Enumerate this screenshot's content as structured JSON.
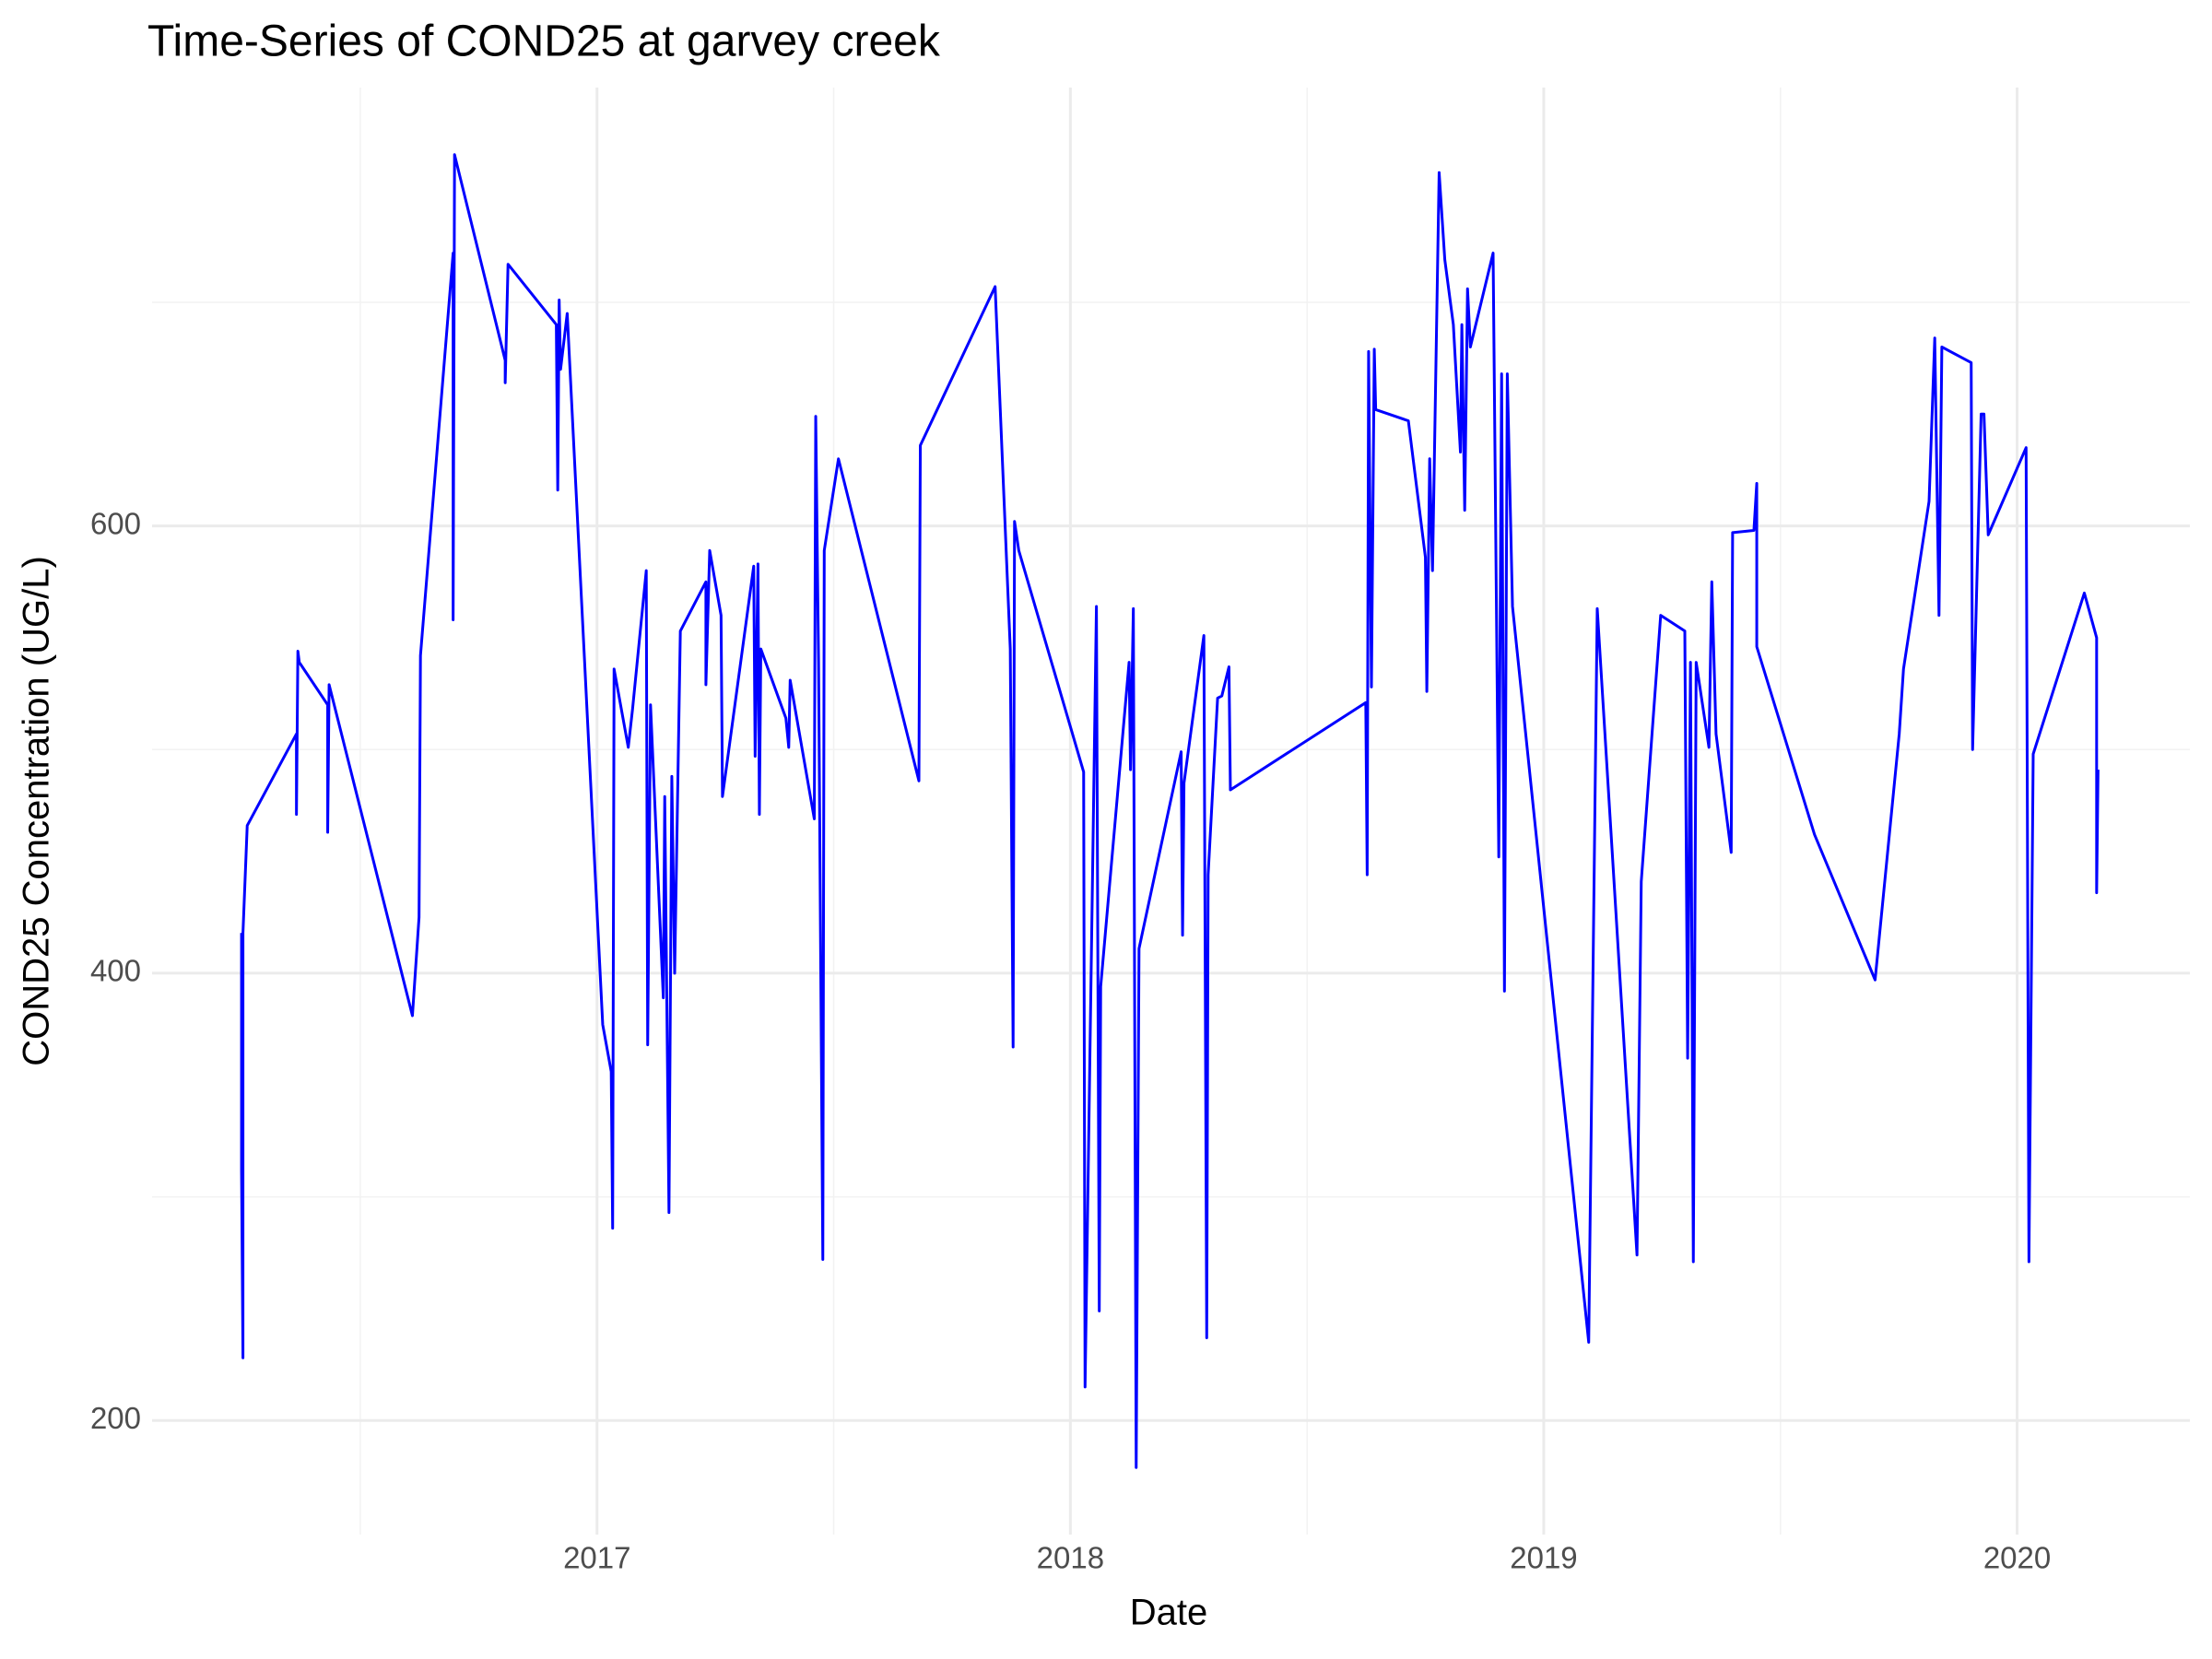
{
  "chart_data": {
    "type": "line",
    "title": "Time-Series of COND25 at garvey creek",
    "x_label": "Date",
    "y_label": "COND25 Concentration (UG/L)",
    "color": "#0000ff",
    "grid": true,
    "xlim": [
      2016.06,
      2020.365
    ],
    "xticks": [
      2017,
      2018,
      2019,
      2020
    ],
    "ylim": [
      149,
      796
    ],
    "yticks": [
      200,
      400,
      600
    ],
    "x": [
      2016.249,
      2016.249,
      2016.252,
      2016.252,
      2016.261,
      2016.365,
      2016.365,
      2016.368,
      2016.371,
      2016.431,
      2016.431,
      2016.434,
      2016.61,
      2016.624,
      2016.627,
      2016.696,
      2016.696,
      2016.699,
      2016.806,
      2016.806,
      2016.812,
      2016.914,
      2016.917,
      2016.92,
      2016.923,
      2016.937,
      2017.012,
      2017.03,
      2017.033,
      2017.036,
      2017.066,
      2017.075,
      2017.104,
      2017.107,
      2017.113,
      2017.14,
      2017.143,
      2017.152,
      2017.158,
      2017.164,
      2017.176,
      2017.23,
      2017.23,
      2017.238,
      2017.262,
      2017.265,
      2017.331,
      2017.334,
      2017.34,
      2017.343,
      2017.346,
      2017.399,
      2017.405,
      2017.408,
      2017.459,
      2017.462,
      2017.468,
      2017.477,
      2017.48,
      2017.51,
      2017.68,
      2017.683,
      2017.841,
      2017.873,
      2017.879,
      2017.882,
      2017.891,
      2018.028,
      2018.031,
      2018.046,
      2018.055,
      2018.061,
      2018.064,
      2018.124,
      2018.127,
      2018.133,
      2018.139,
      2018.145,
      2018.234,
      2018.237,
      2018.24,
      2018.282,
      2018.288,
      2018.291,
      2018.311,
      2018.32,
      2018.335,
      2018.338,
      2018.624,
      2018.627,
      2018.63,
      2018.636,
      2018.642,
      2018.645,
      2018.714,
      2018.75,
      2018.753,
      2018.759,
      2018.765,
      2018.779,
      2018.791,
      2018.809,
      2018.824,
      2018.827,
      2018.833,
      2018.839,
      2018.845,
      2018.893,
      2018.905,
      2018.911,
      2018.917,
      2018.923,
      2018.934,
      2019.095,
      2019.113,
      2019.197,
      2019.206,
      2019.247,
      2019.298,
      2019.304,
      2019.31,
      2019.316,
      2019.322,
      2019.349,
      2019.355,
      2019.364,
      2019.396,
      2019.399,
      2019.444,
      2019.45,
      2019.45,
      2019.572,
      2019.7,
      2019.751,
      2019.76,
      2019.814,
      2019.826,
      2019.835,
      2019.841,
      2019.903,
      2019.906,
      2019.924,
      2019.93,
      2019.939,
      2020.019,
      2020.025,
      2020.034,
      2020.142,
      2020.168,
      2020.168,
      2020.171
    ],
    "values": [
      418,
      312,
      228,
      418,
      466,
      507,
      471,
      544,
      539,
      520,
      463,
      529,
      381,
      425,
      542,
      722,
      558,
      766,
      674,
      664,
      717,
      690,
      616,
      701,
      670,
      695,
      377,
      356,
      286,
      536,
      501,
      518,
      580,
      368,
      520,
      389,
      479,
      293,
      488,
      400,
      553,
      575,
      529,
      589,
      560,
      479,
      582,
      497,
      583,
      471,
      545,
      514,
      501,
      531,
      469,
      649,
      539,
      272,
      589,
      630,
      486,
      636,
      707,
      545,
      367,
      602,
      589,
      490,
      215,
      432,
      564,
      249,
      394,
      539,
      491,
      563,
      179,
      411,
      499,
      417,
      485,
      551,
      237,
      444,
      523,
      524,
      537,
      482,
      521,
      444,
      678,
      528,
      679,
      652,
      647,
      586,
      526,
      630,
      580,
      758,
      719,
      690,
      633,
      690,
      607,
      706,
      680,
      722,
      452,
      668,
      392,
      668,
      564,
      235,
      563,
      274,
      441,
      560,
      553,
      362,
      539,
      271,
      539,
      501,
      575,
      507,
      454,
      597,
      598,
      619,
      546,
      462,
      397,
      507,
      536,
      611,
      684,
      560,
      680,
      673,
      500,
      650,
      650,
      596,
      635,
      271,
      498,
      570,
      550,
      436,
      491
    ]
  }
}
